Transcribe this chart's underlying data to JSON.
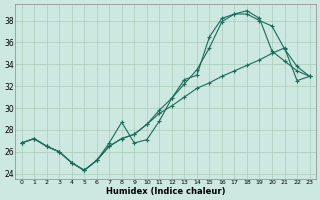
{
  "xlabel": "Humidex (Indice chaleur)",
  "bg_color": "#cce8e0",
  "grid_color": "#aaccbb",
  "line_color": "#1a6b5a",
  "xlim": [
    -0.5,
    23.5
  ],
  "ylim": [
    23.5,
    39.5
  ],
  "xticks": [
    0,
    1,
    2,
    3,
    4,
    5,
    6,
    7,
    8,
    9,
    10,
    11,
    12,
    13,
    14,
    15,
    16,
    17,
    18,
    19,
    20,
    21,
    22,
    23
  ],
  "yticks": [
    24,
    26,
    28,
    30,
    32,
    34,
    36,
    38
  ],
  "line1_x": [
    0,
    1,
    2,
    3,
    4,
    5,
    6,
    7,
    8,
    9,
    10,
    11,
    12,
    13,
    14,
    15,
    16,
    17,
    18,
    19,
    20,
    21,
    22,
    23
  ],
  "line1_y": [
    26.8,
    27.2,
    26.5,
    26.0,
    25.0,
    24.3,
    25.2,
    26.8,
    28.7,
    26.8,
    27.1,
    28.8,
    30.9,
    32.6,
    33.0,
    36.5,
    38.2,
    38.6,
    38.6,
    38.0,
    37.5,
    35.4,
    33.8,
    32.9
  ],
  "line2_x": [
    0,
    1,
    2,
    3,
    4,
    5,
    6,
    7,
    8,
    9,
    10,
    11,
    12,
    13,
    14,
    15,
    16,
    17,
    18,
    19,
    20,
    21,
    22,
    23
  ],
  "line2_y": [
    26.8,
    27.2,
    26.5,
    26.0,
    25.0,
    24.3,
    25.2,
    26.5,
    27.2,
    27.6,
    28.5,
    29.8,
    30.9,
    32.2,
    33.5,
    35.5,
    37.9,
    38.6,
    38.9,
    38.2,
    35.2,
    34.3,
    33.4,
    32.9
  ],
  "line3_x": [
    0,
    1,
    2,
    3,
    4,
    5,
    6,
    7,
    8,
    9,
    10,
    11,
    12,
    13,
    14,
    15,
    16,
    17,
    18,
    19,
    20,
    21,
    22,
    23
  ],
  "line3_y": [
    26.8,
    27.2,
    26.5,
    26.0,
    25.0,
    24.3,
    25.2,
    26.5,
    27.2,
    27.6,
    28.5,
    29.5,
    30.2,
    31.0,
    31.8,
    32.3,
    32.9,
    33.4,
    33.9,
    34.4,
    35.0,
    35.5,
    32.5,
    32.9
  ]
}
